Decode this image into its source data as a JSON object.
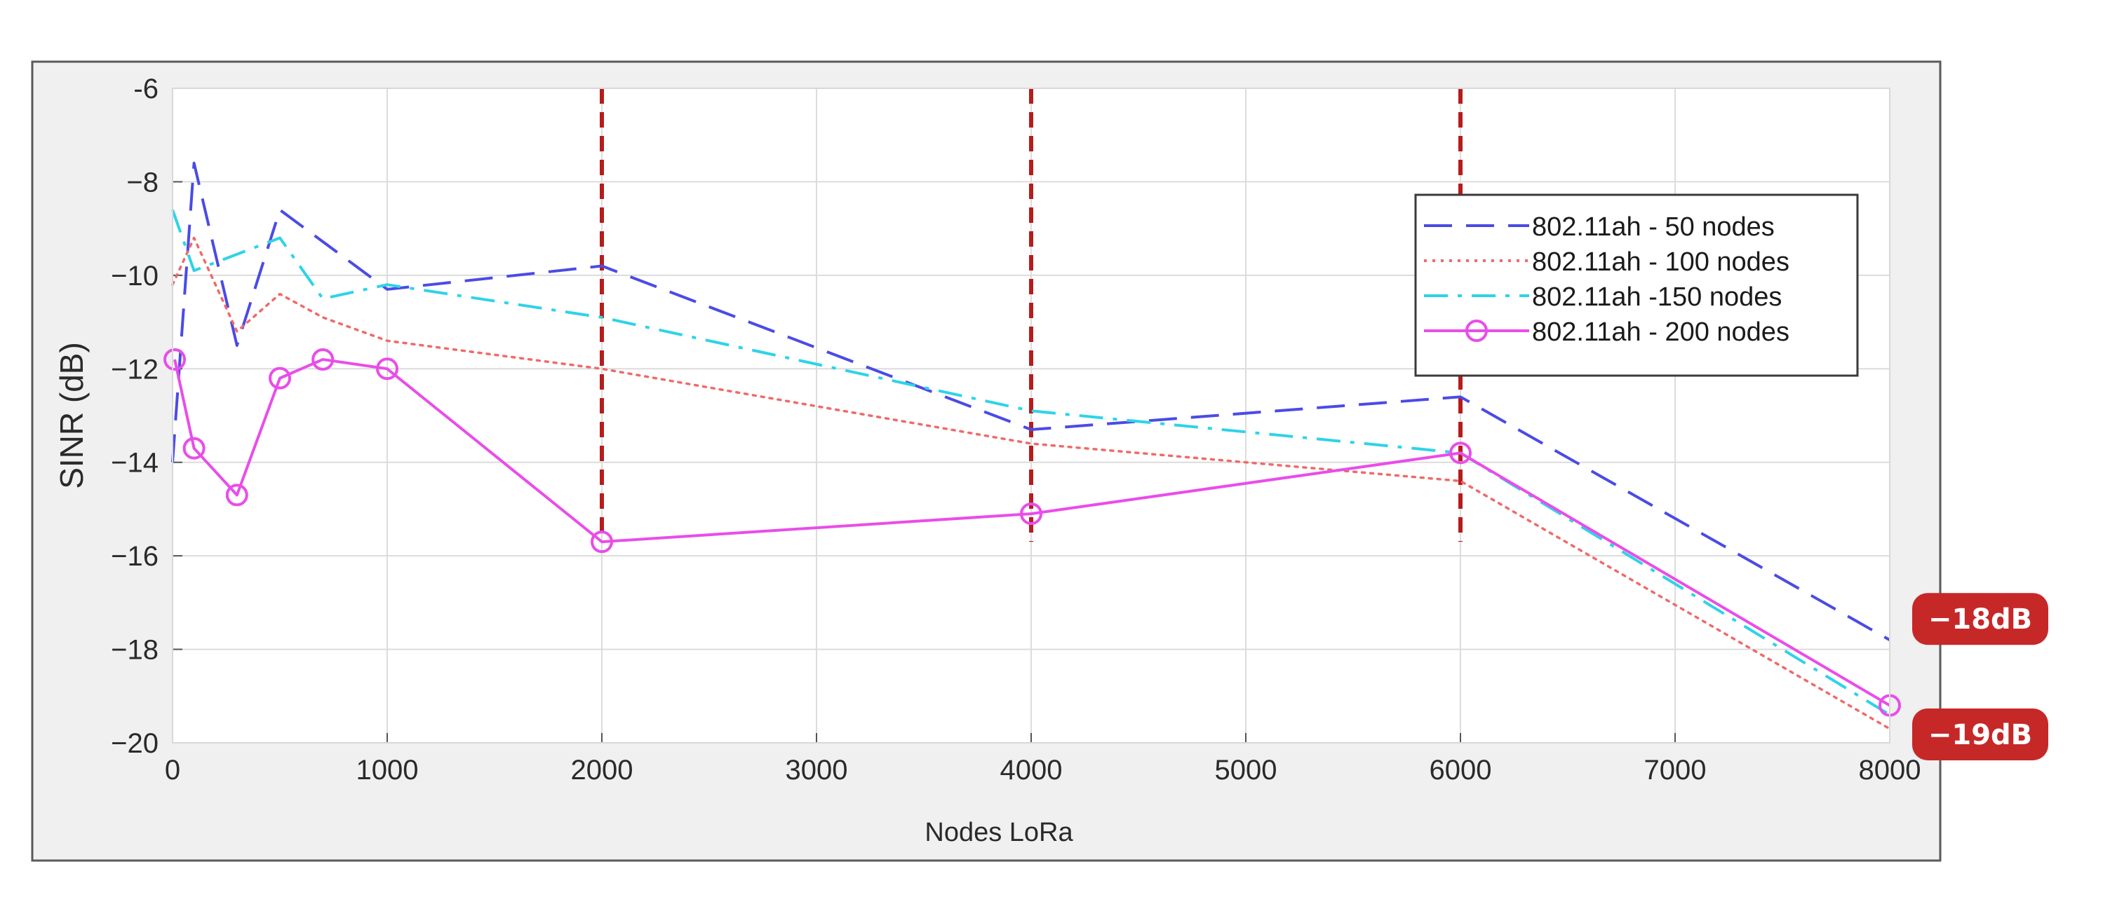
{
  "chart_data": {
    "type": "line",
    "xlabel": "Nodes LoRa",
    "ylabel": "SINR (dB)",
    "xlim": [
      0,
      8000
    ],
    "ylim": [
      -20,
      -6
    ],
    "xticks": [
      "0",
      "1000",
      "2000",
      "3000",
      "4000",
      "5000",
      "6000",
      "7000",
      "8000"
    ],
    "yticks": [
      "-6",
      "−8",
      "−10",
      "−12",
      "−14",
      "−16",
      "−18",
      "−20"
    ],
    "grid": true,
    "legend_position": "top-right",
    "series": [
      {
        "name": "802.11ah - 50 nodes",
        "color": "#4b4be6",
        "style": "dashed",
        "x": [
          0,
          100,
          300,
          500,
          1000,
          2000,
          4000,
          6000,
          8000
        ],
        "y": [
          -14.0,
          -7.6,
          -11.5,
          -8.6,
          -10.3,
          -9.8,
          -13.3,
          -12.6,
          -17.8
        ]
      },
      {
        "name": "802.11ah - 100 nodes",
        "color": "#ef6a6a",
        "style": "dotted",
        "x": [
          0,
          100,
          300,
          500,
          700,
          1000,
          2000,
          4000,
          6000,
          8000
        ],
        "y": [
          -10.2,
          -9.2,
          -11.2,
          -10.4,
          -10.9,
          -11.4,
          -12.0,
          -13.6,
          -14.4,
          -19.7
        ]
      },
      {
        "name": "802.11ah -150 nodes",
        "color": "#2ed3e8",
        "style": "dashdot",
        "x": [
          0,
          100,
          500,
          700,
          1000,
          2000,
          4000,
          6000,
          8000
        ],
        "y": [
          -8.6,
          -9.9,
          -9.2,
          -10.5,
          -10.2,
          -10.9,
          -12.9,
          -13.8,
          -19.4
        ]
      },
      {
        "name": "802.11ah - 200 nodes",
        "color": "#e94de9",
        "style": "solid-circle",
        "x": [
          10,
          100,
          300,
          500,
          700,
          1000,
          2000,
          4000,
          6000,
          8000
        ],
        "y": [
          -11.8,
          -13.7,
          -14.7,
          -12.2,
          -11.8,
          -12.0,
          -15.7,
          -15.1,
          -13.8,
          -19.2
        ]
      }
    ],
    "vertical_markers": {
      "color": "#b71c1c",
      "x": [
        2000,
        4000,
        6000
      ]
    },
    "annotations": [
      {
        "text": "−18dB",
        "y": -17.8,
        "color": "#c62828"
      },
      {
        "text": "−19dB",
        "y": -19.4,
        "color": "#c62828"
      }
    ]
  }
}
